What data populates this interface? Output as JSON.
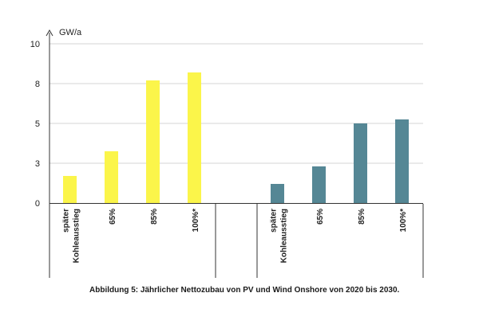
{
  "chart_data": {
    "type": "bar",
    "ylabel": "GW/a",
    "yticks": [
      "0",
      "3",
      "5",
      "8",
      "10"
    ],
    "ylim": [
      0,
      10
    ],
    "grid": true,
    "groups": [
      {
        "color": "#fbf54a",
        "categories": [
          {
            "lines": [
              "später",
              "Kohleausstieg"
            ],
            "value": 1.7
          },
          {
            "lines": [
              "65%"
            ],
            "value": 3.25
          },
          {
            "lines": [
              "85%"
            ],
            "value": 7.7
          },
          {
            "lines": [
              "100%*"
            ],
            "value": 8.2
          }
        ]
      },
      {
        "color": "#558795",
        "categories": [
          {
            "lines": [
              "später",
              "Kohleausstieg"
            ],
            "value": 1.2
          },
          {
            "lines": [
              "65%"
            ],
            "value": 2.3
          },
          {
            "lines": [
              "85%"
            ],
            "value": 5.0
          },
          {
            "lines": [
              "100%*"
            ],
            "value": 5.25
          }
        ]
      }
    ]
  },
  "caption": "Abbildung 5: Jährlicher Nettozubau von PV und Wind Onshore von 2020 bis 2030."
}
